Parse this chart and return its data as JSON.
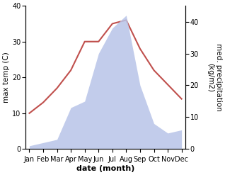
{
  "months": [
    "Jan",
    "Feb",
    "Mar",
    "Apr",
    "May",
    "Jun",
    "Jul",
    "Aug",
    "Sep",
    "Oct",
    "Nov",
    "Dec"
  ],
  "temperature": [
    10,
    13,
    17,
    22,
    30,
    30,
    35,
    36,
    28,
    22,
    18,
    14
  ],
  "precipitation": [
    1,
    2,
    3,
    13,
    15,
    30,
    38,
    42,
    20,
    8,
    5,
    6
  ],
  "temp_color": "#c0504d",
  "precip_fill_color": "#b8c4e8",
  "temp_ylim": [
    0,
    40
  ],
  "precip_ylim": [
    0,
    45
  ],
  "temp_yticks": [
    0,
    10,
    20,
    30,
    40
  ],
  "precip_yticks": [
    0,
    10,
    20,
    30,
    40
  ],
  "xlabel": "date (month)",
  "ylabel_left": "max temp (C)",
  "ylabel_right": "med. precipitation\n(kg/m2)",
  "bg_color": "#ffffff",
  "xlabel_fontsize": 8,
  "ylabel_fontsize": 7.5,
  "tick_fontsize": 7
}
